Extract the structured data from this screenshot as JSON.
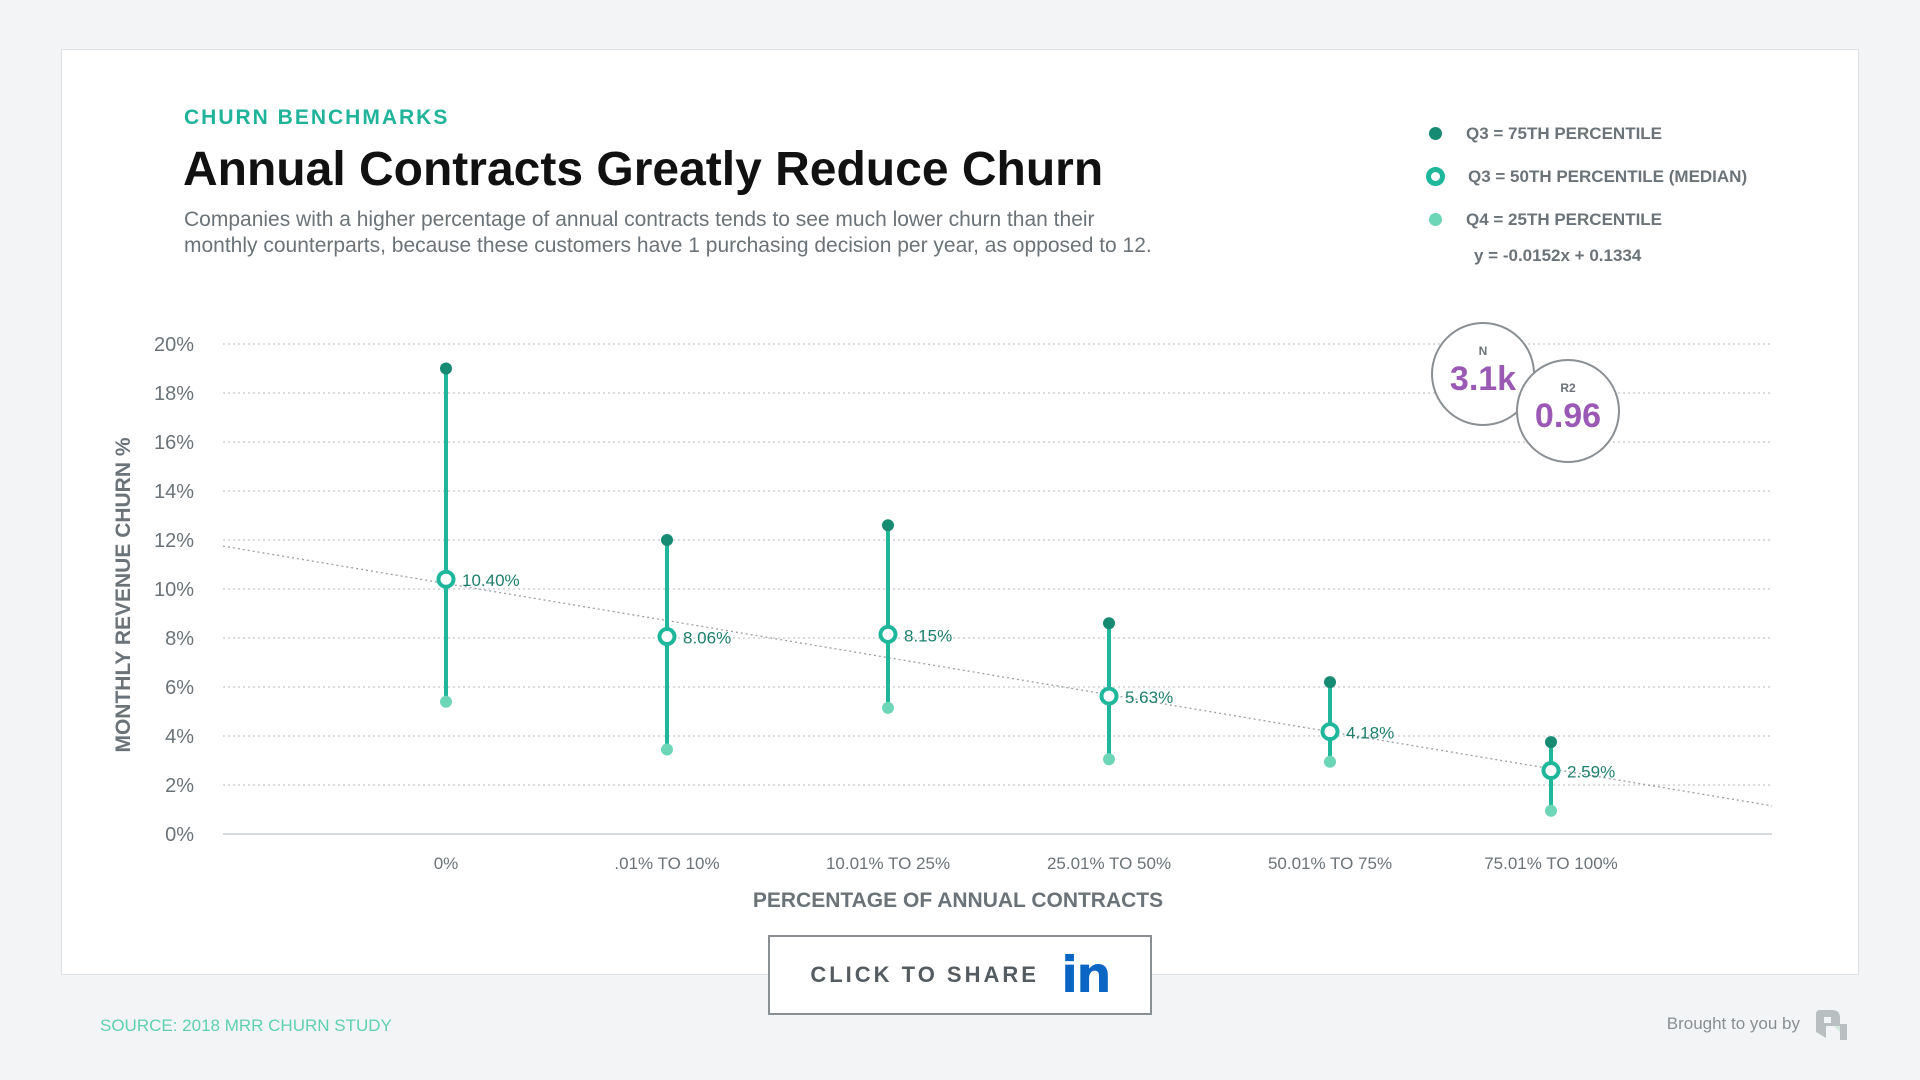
{
  "header": {
    "kicker": "CHURN BENCHMARKS",
    "title": "Annual Contracts Greatly Reduce Churn",
    "subtitle_line1": "Companies with a higher percentage of annual contracts tends to see much lower churn than their",
    "subtitle_line2": "monthly counterparts, because these customers have 1 purchasing decision per year, as opposed to 12."
  },
  "legend": {
    "items": [
      {
        "label": "Q3 = 75TH PERCENTILE",
        "color": "#178a73"
      },
      {
        "label": "Q3 = 50TH PERCENTILE (MEDIAN)",
        "color": "#1fb79c"
      },
      {
        "label": "Q4 = 25TH PERCENTILE",
        "color": "#6dd6b6"
      }
    ],
    "equation": "y = -0.0152x + 0.1334"
  },
  "stats": {
    "n_label": "N",
    "n_value": "3.1k",
    "r2_label": "R2",
    "r2_value": "0.96",
    "value_color": "#9b59b6"
  },
  "chart_data": {
    "type": "range-dot",
    "xlabel": "PERCENTAGE OF ANNUAL CONTRACTS",
    "ylabel": "MONTHLY REVENUE CHURN %",
    "ylim": [
      0,
      20
    ],
    "yticks": [
      "0%",
      "2%",
      "4%",
      "6%",
      "8%",
      "10%",
      "12%",
      "14%",
      "16%",
      "18%",
      "20%"
    ],
    "grid": true,
    "categories": [
      "0%",
      ".01% TO 10%",
      "10.01% TO 25%",
      "25.01% TO 50%",
      "50.01% TO 75%",
      "75.01% TO 100%"
    ],
    "series": [
      {
        "name": "Q3 = 75TH PERCENTILE",
        "values": [
          19.0,
          12.0,
          12.6,
          8.6,
          6.2,
          3.75
        ]
      },
      {
        "name": "Q3 = 50TH PERCENTILE (MEDIAN)",
        "values": [
          10.4,
          8.06,
          8.15,
          5.63,
          4.18,
          2.59
        ]
      },
      {
        "name": "Q4 = 25TH PERCENTILE",
        "values": [
          5.4,
          3.45,
          5.15,
          3.05,
          2.95,
          0.95
        ]
      }
    ],
    "median_labels": [
      "10.40%",
      "8.06%",
      "8.15%",
      "5.63%",
      "4.18%",
      "2.59%"
    ],
    "trendline": "y = -0.0152x + 0.1334"
  },
  "share": {
    "label": "CLICK TO SHARE",
    "network": "in"
  },
  "footer": {
    "source": "SOURCE: 2018 MRR CHURN STUDY",
    "brought": "Brought to you by"
  }
}
